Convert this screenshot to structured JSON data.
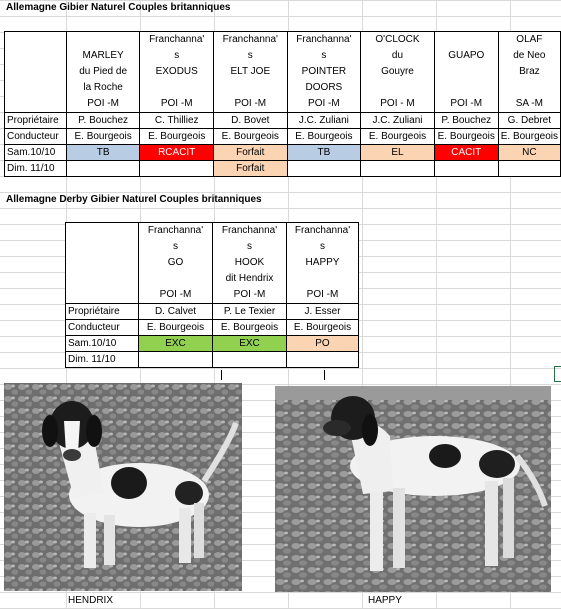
{
  "table1": {
    "title": "Allemagne  Gibier Naturel Couples britanniques",
    "dogs": [
      {
        "name": "MARLEY\ndu Pied de\nla Roche\nPOI -M",
        "owner": "P. Bouchez",
        "handler": "E. Bourgeois",
        "sat": "TB",
        "sat_color": "tb",
        "sun": ""
      },
      {
        "name": "Franchanna'\ns\nEXODUS\n\nPOI -M",
        "owner": "C. Thilliez",
        "handler": "E. Bourgeois",
        "sat": "RCACIT",
        "sat_color": "red",
        "sun": ""
      },
      {
        "name": "Franchanna'\ns\nELT JOE\n\nPOI -M",
        "owner": "D. Bovet",
        "handler": "E. Bourgeois",
        "sat": "Forfait",
        "sat_color": "orange",
        "sun": "Forfait",
        "sun_color": "orange"
      },
      {
        "name": "Franchanna'\ns\nPOINTER\nDOORS\nPOI -M",
        "owner": "J.C. Zuliani",
        "handler": "E. Bourgeois",
        "sat": "TB",
        "sat_color": "tb",
        "sun": ""
      },
      {
        "name": "O'CLOCK\ndu\nGouyre\n\nPOI - M",
        "owner": "J.C. Zuliani",
        "handler": "E. Bourgeois",
        "sat": "EL",
        "sat_color": "orange",
        "sun": ""
      },
      {
        "name": "GUAPO\n\n\nPOI -M",
        "owner": "P. Bouchez",
        "handler": "E. Bourgeois",
        "sat": "CACIT",
        "sat_color": "red",
        "sun": ""
      },
      {
        "name": "OLAF\nde Neo\nBraz\n\nSA -M",
        "owner": "G. Debret",
        "handler": "E. Bourgeois",
        "sat": "NC",
        "sat_color": "orange",
        "sun": ""
      }
    ],
    "labels": {
      "owner": "Propriétaire",
      "handler": "Conducteur",
      "sat": "Sam.10/10",
      "sun": "Dim. 11/10"
    }
  },
  "table2": {
    "title": "Allemagne Derby  Gibier Naturel Couples britanniques",
    "dogs": [
      {
        "name": "Franchanna'\ns\nGO\n\nPOI -M",
        "owner": "D. Calvet",
        "handler": "E. Bourgeois",
        "sat": "EXC",
        "sat_color": "green",
        "sun": ""
      },
      {
        "name": "Franchanna'\ns\nHOOK\ndit Hendrix\nPOI -M",
        "owner": "P. Le Texier",
        "handler": "E. Bourgeois",
        "sat": "EXC",
        "sat_color": "green",
        "sun": ""
      },
      {
        "name": "Franchanna'\ns\nHAPPY\n\nPOI -M",
        "owner": "J. Esser",
        "handler": "E. Bourgeois",
        "sat": "PO",
        "sat_color": "orange",
        "sun": ""
      }
    ],
    "labels": {
      "owner": "Propriétaire",
      "handler": "Conducteur",
      "sat": "Sam.10/10",
      "sun": "Dim. 11/10"
    }
  },
  "photos": {
    "left_caption": "HENDRIX",
    "right_caption": "HAPPY"
  }
}
